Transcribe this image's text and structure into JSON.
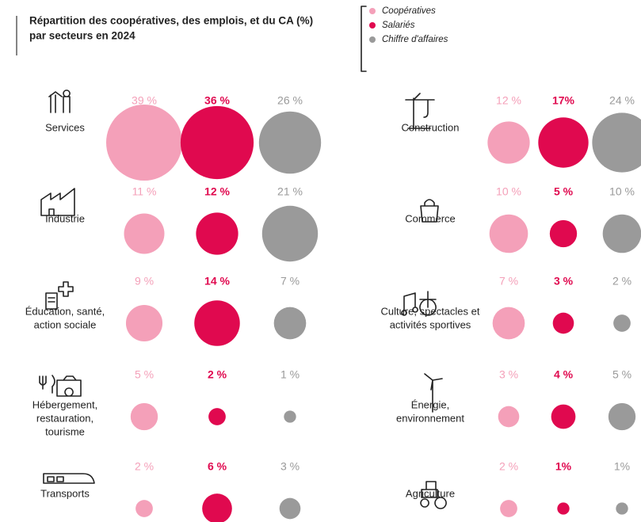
{
  "chart_data": {
    "type": "bubble",
    "title": [
      "Répartition des coopératives, des emplois, et du CA (%)",
      "par secteurs en 2024"
    ],
    "categories": [
      [
        "Services"
      ],
      [
        "Industrie"
      ],
      [
        "Éducation, santé,",
        "action sociale"
      ],
      [
        "Hébergement,",
        "restauration,",
        "tourisme"
      ],
      [
        "Transports"
      ],
      [
        "Construction"
      ],
      [
        "Commerce"
      ],
      [
        "Culture, spectacles et",
        "activités sportives"
      ],
      [
        "Énergie,",
        "environnement"
      ],
      [
        "Agriculture"
      ]
    ],
    "series": [
      {
        "name": "Coopératives",
        "color": "#f4a0b9",
        "values": [
          39,
          11,
          9,
          5,
          2,
          12,
          10,
          7,
          3,
          2
        ],
        "value_labels": [
          "39 %",
          "11 %",
          "9 %",
          "5 %",
          "2 %",
          "12 %",
          "10 %",
          "7 %",
          "3 %",
          "2 %"
        ]
      },
      {
        "name": "Salariés",
        "color": "#e0094f",
        "values": [
          36,
          12,
          14,
          2,
          6,
          17,
          5,
          3,
          4,
          1
        ],
        "value_labels": [
          "36 %",
          "12 %",
          "14 %",
          "2 %",
          "6 %",
          "17%",
          "5 %",
          "3 %",
          "4 %",
          "1%"
        ]
      },
      {
        "name": "Chiffre d'affaires",
        "color": "#9a9a9a",
        "values": [
          26,
          21,
          7,
          1,
          3,
          24,
          10,
          2,
          5,
          1
        ],
        "value_labels": [
          "26 %",
          "21 %",
          "7 %",
          "1 %",
          "3 %",
          "24 %",
          "10 %",
          "2 %",
          "5 %",
          "1%"
        ]
      }
    ]
  }
}
